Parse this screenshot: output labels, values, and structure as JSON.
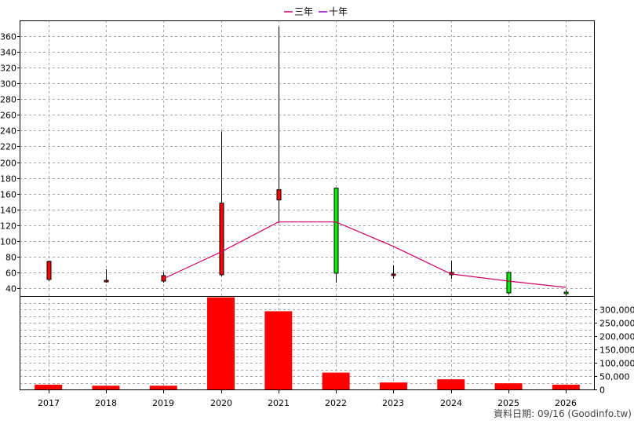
{
  "legend": [
    {
      "label": "三年",
      "color": "#cc0066"
    },
    {
      "label": "十年",
      "color": "#8800cc"
    }
  ],
  "credit": "資料日期: 09/16  (Goodinfo.tw)",
  "colors": {
    "up": "#ff0000",
    "down": "#00ee00",
    "volume": "#ff0000",
    "wick": "#000000",
    "ma3": "#cc0066"
  },
  "chart_data": [
    {
      "type": "candlestick",
      "categories": [
        "2017",
        "2018",
        "2019",
        "2020",
        "2021",
        "2022",
        "2023",
        "2024",
        "2025",
        "2026"
      ],
      "yticks": [
        40,
        60,
        80,
        100,
        120,
        140,
        160,
        180,
        200,
        220,
        240,
        260,
        280,
        300,
        320,
        340,
        360
      ],
      "ylim": [
        30,
        372
      ],
      "grid": true,
      "candles": [
        {
          "x": "2017",
          "open": 51,
          "high": 75,
          "low": 49,
          "close": 74
        },
        {
          "x": "2018",
          "open": 49,
          "high": 64,
          "low": 47,
          "close": 50
        },
        {
          "x": "2019",
          "open": 49,
          "high": 60,
          "low": 47,
          "close": 56
        },
        {
          "x": "2020",
          "open": 57,
          "high": 239,
          "low": 55,
          "close": 148
        },
        {
          "x": "2021",
          "open": 152,
          "high": 372,
          "low": 123,
          "close": 165
        },
        {
          "x": "2022",
          "open": 167,
          "high": 167,
          "low": 47,
          "close": 59
        },
        {
          "x": "2023",
          "open": 58,
          "high": 69,
          "low": 52,
          "close": 58
        },
        {
          "x": "2024",
          "open": 57,
          "high": 75,
          "low": 52,
          "close": 60
        },
        {
          "x": "2025",
          "open": 60,
          "high": 60,
          "low": 32,
          "close": 34
        },
        {
          "x": "2026",
          "open": 35,
          "high": 38,
          "low": 30,
          "close": 33
        }
      ],
      "series": [
        {
          "name": "三年",
          "type": "line",
          "x": [
            "2019",
            "2020",
            "2021",
            "2022",
            "2023",
            "2024",
            "2025",
            "2026"
          ],
          "values": [
            52,
            86,
            124,
            124,
            93,
            58,
            49,
            41
          ]
        }
      ]
    },
    {
      "type": "bar",
      "categories": [
        "2017",
        "2018",
        "2019",
        "2020",
        "2021",
        "2022",
        "2023",
        "2024",
        "2025",
        "2026"
      ],
      "values": [
        18000,
        14000,
        14000,
        345000,
        293000,
        63000,
        26000,
        38000,
        23000,
        18000
      ],
      "yticks": [
        0,
        50000,
        100000,
        150000,
        200000,
        250000,
        300000
      ],
      "ytick_labels": [
        "0",
        "50,000",
        "100,000",
        "150,000",
        "200,000",
        "250,000",
        "300,000"
      ],
      "ylim": [
        0,
        345000
      ],
      "grid": true
    }
  ]
}
